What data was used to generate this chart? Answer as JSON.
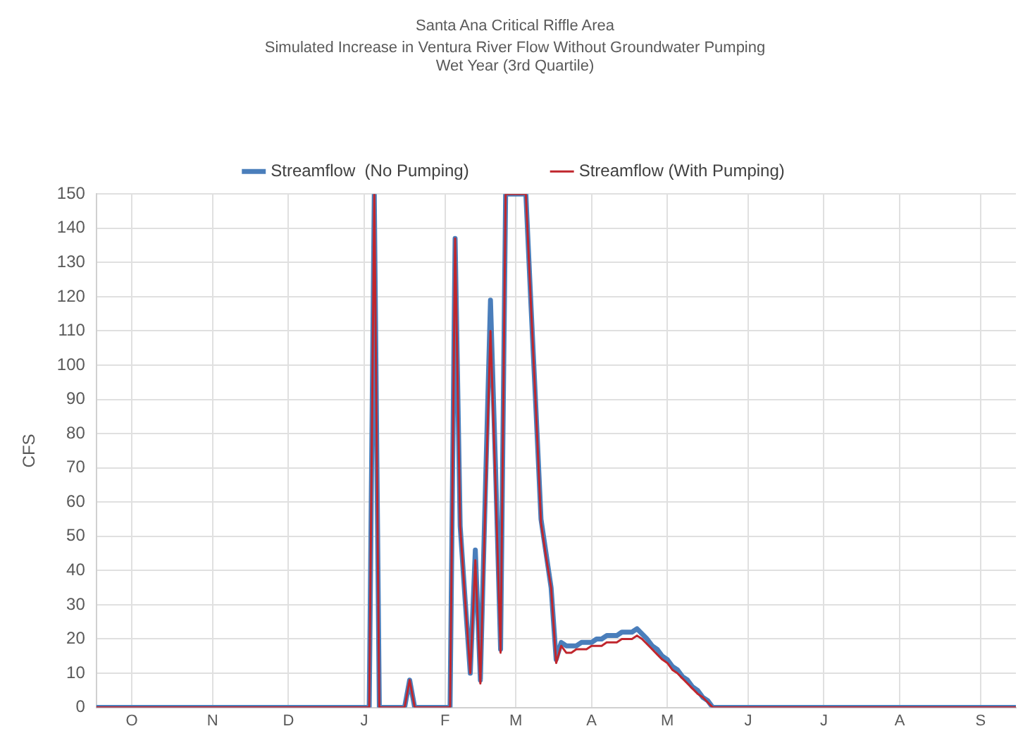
{
  "chart_data": {
    "type": "line",
    "title": "Santa Ana Critical Riffle Area",
    "subtitle": "Simulated Increase in Ventura River Flow Without Groundwater Pumping\nWet Year (3rd Quartile)",
    "ylabel": "CFS",
    "categories": [
      null,
      null,
      null,
      null,
      null,
      null,
      null,
      "O",
      null,
      null,
      null,
      null,
      null,
      null,
      null,
      null,
      null,
      null,
      null,
      null,
      null,
      null,
      null,
      "N",
      null,
      null,
      null,
      null,
      null,
      null,
      null,
      null,
      null,
      null,
      null,
      null,
      null,
      null,
      "D",
      null,
      null,
      null,
      null,
      null,
      null,
      null,
      null,
      null,
      null,
      null,
      null,
      null,
      null,
      "J",
      null,
      null,
      null,
      null,
      null,
      null,
      null,
      null,
      null,
      null,
      null,
      null,
      null,
      null,
      null,
      "F",
      null,
      null,
      null,
      null,
      null,
      null,
      null,
      null,
      null,
      null,
      null,
      null,
      null,
      "M",
      null,
      null,
      null,
      null,
      null,
      null,
      null,
      null,
      null,
      null,
      null,
      null,
      null,
      null,
      "A",
      null,
      null,
      null,
      null,
      null,
      null,
      null,
      null,
      null,
      null,
      null,
      null,
      null,
      null,
      "M",
      null,
      null,
      null,
      null,
      null,
      null,
      null,
      null,
      null,
      null,
      null,
      null,
      null,
      null,
      null,
      "J",
      null,
      null,
      null,
      null,
      null,
      null,
      null,
      null,
      null,
      null,
      null,
      null,
      null,
      null,
      "J",
      null,
      null,
      null,
      null,
      null,
      null,
      null,
      null,
      null,
      null,
      null,
      null,
      null,
      null,
      "A",
      null,
      null,
      null,
      null,
      null,
      null,
      null,
      null,
      null,
      null,
      null,
      null,
      null,
      null,
      null,
      "S",
      null,
      null,
      null,
      null,
      null,
      null,
      null
    ],
    "series": [
      {
        "name": "Streamflow  (No Pumping)",
        "color": "#4a7ebb",
        "values": [
          0,
          0,
          0,
          0,
          0,
          0,
          0,
          0,
          0,
          0,
          0,
          0,
          0,
          0,
          0,
          0,
          0,
          0,
          0,
          0,
          0,
          0,
          0,
          0,
          0,
          0,
          0,
          0,
          0,
          0,
          0,
          0,
          0,
          0,
          0,
          0,
          0,
          0,
          0,
          0,
          0,
          0,
          0,
          0,
          0,
          0,
          0,
          0,
          0,
          0,
          0,
          0,
          0,
          0,
          0,
          150,
          0,
          0,
          0,
          0,
          0,
          0,
          8,
          0,
          0,
          0,
          0,
          0,
          0,
          0,
          0,
          137,
          53,
          31,
          10,
          46,
          8,
          64,
          119,
          70,
          17,
          150,
          150,
          150,
          150,
          150,
          118,
          87,
          55,
          45,
          35,
          14,
          19,
          18,
          18,
          18,
          19,
          19,
          19,
          20,
          20,
          21,
          21,
          21,
          22,
          22,
          22,
          23,
          21.5,
          20,
          18,
          17,
          15,
          14,
          12,
          11,
          9,
          8,
          6,
          5,
          3,
          2,
          0,
          0,
          0,
          0,
          0,
          0,
          0,
          0,
          0,
          0,
          0,
          0,
          0,
          0,
          0,
          0,
          0,
          0,
          0,
          0,
          0,
          0,
          0,
          0,
          0,
          0,
          0,
          0,
          0,
          0,
          0,
          0,
          0,
          0,
          0,
          0,
          0,
          0,
          0,
          0,
          0,
          0,
          0,
          0,
          0,
          0,
          0,
          0,
          0,
          0,
          0,
          0,
          0,
          0,
          0,
          0,
          0,
          0,
          0,
          0,
          0
        ]
      },
      {
        "name": "Streamflow (With Pumping)",
        "color": "#c0262d",
        "values": [
          0,
          0,
          0,
          0,
          0,
          0,
          0,
          0,
          0,
          0,
          0,
          0,
          0,
          0,
          0,
          0,
          0,
          0,
          0,
          0,
          0,
          0,
          0,
          0,
          0,
          0,
          0,
          0,
          0,
          0,
          0,
          0,
          0,
          0,
          0,
          0,
          0,
          0,
          0,
          0,
          0,
          0,
          0,
          0,
          0,
          0,
          0,
          0,
          0,
          0,
          0,
          0,
          0,
          0,
          0,
          150,
          0,
          0,
          0,
          0,
          0,
          0,
          8,
          0,
          0,
          0,
          0,
          0,
          0,
          0,
          0,
          137,
          53,
          31,
          10,
          43,
          7,
          60,
          110,
          65,
          16,
          150,
          150,
          150,
          150,
          150,
          118,
          87,
          54,
          44,
          35,
          13,
          18,
          16,
          16,
          17,
          17,
          17,
          18,
          18,
          18,
          19,
          19,
          19,
          20,
          20,
          20,
          21,
          20,
          18.5,
          17,
          15.5,
          14,
          13,
          11,
          10,
          8.5,
          7,
          5.5,
          4,
          3,
          1.5,
          0,
          0,
          0,
          0,
          0,
          0,
          0,
          0,
          0,
          0,
          0,
          0,
          0,
          0,
          0,
          0,
          0,
          0,
          0,
          0,
          0,
          0,
          0,
          0,
          0,
          0,
          0,
          0,
          0,
          0,
          0,
          0,
          0,
          0,
          0,
          0,
          0,
          0,
          0,
          0,
          0,
          0,
          0,
          0,
          0,
          0,
          0,
          0,
          0,
          0,
          0,
          0,
          0,
          0,
          0,
          0,
          0,
          0,
          0,
          0,
          0
        ]
      }
    ],
    "ylim": [
      0,
      150
    ],
    "yticks": [
      0,
      10,
      20,
      30,
      40,
      50,
      60,
      70,
      80,
      90,
      100,
      110,
      120,
      130,
      140,
      150
    ],
    "grid": true,
    "legend": "top",
    "marker": "none",
    "line_style": "solid"
  }
}
